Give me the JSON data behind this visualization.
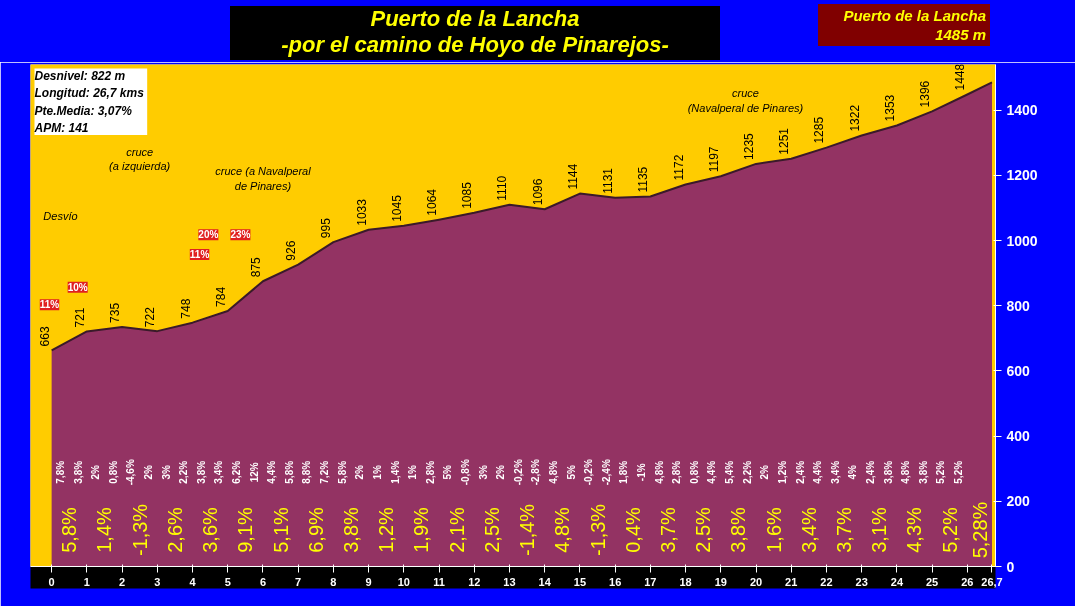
{
  "chart_data": {
    "type": "area",
    "title": "Puerto de la Lancha",
    "subtitle": "-por el camino de Hoyo de Pinarejos-",
    "x": [
      0,
      1,
      2,
      3,
      4,
      5,
      6,
      7,
      8,
      9,
      10,
      11,
      12,
      13,
      14,
      15,
      16,
      17,
      18,
      19,
      20,
      21,
      22,
      23,
      24,
      25,
      26,
      26.7
    ],
    "series": [
      {
        "color": "#933363",
        "values": [
          663,
          721,
          735,
          722,
          748,
          784,
          875,
          926,
          995,
          1033,
          1045,
          1064,
          1085,
          1110,
          1096,
          1144,
          1131,
          1135,
          1172,
          1197,
          1235,
          1251,
          1285,
          1322,
          1353,
          1396,
          1448,
          1485
        ],
        "value_labels": [
          "663",
          "721",
          "735",
          "722",
          "748",
          "784",
          "875",
          "926",
          "995",
          "1033",
          "1045",
          "1064",
          "1085",
          "1110",
          "1096",
          "1144",
          "1131",
          "1135",
          "1172",
          "1197",
          "1235",
          "1251",
          "1285",
          "1322",
          "1353",
          "1396",
          "1448",
          null
        ]
      }
    ],
    "xlim": [
      -0.6,
      26.8
    ],
    "ylim": [
      0,
      1540
    ],
    "xticks": [
      0,
      1,
      2,
      3,
      4,
      5,
      6,
      7,
      8,
      9,
      10,
      11,
      12,
      13,
      14,
      15,
      16,
      17,
      18,
      19,
      20,
      21,
      22,
      23,
      24,
      25,
      26,
      {
        "value": 26.7,
        "label": "26,7"
      }
    ],
    "yticks": [
      0,
      200,
      400,
      600,
      800,
      1000,
      1200,
      1400
    ],
    "grid": false,
    "annotations": [
      "Desnivel:  822 m\nLongitud:  26,7 kms\nPte.Media:  3,07%\nAPM:  141",
      "Puerto de la Lancha\n1485 m",
      "Desvío",
      "cruce\n(a izquierda)",
      "cruce (a Navalperal\nde Pinares)",
      "cruce\n(Navalperal de Pinares)",
      "11%",
      "10%",
      "11%",
      "20%",
      "23%",
      "7,8%",
      "3,8%",
      "2%",
      "0,8%",
      "-4,6%",
      "2%",
      "3%",
      "2,2%",
      "3,8%",
      "3,4%",
      "6,2%",
      "12%",
      "4,4%",
      "5,8%",
      "8,8%",
      "7,2%",
      "5,8%",
      "2%",
      "1%",
      "1,4%",
      "1%",
      "2,8%",
      "5%",
      "-0,8%",
      "3%",
      "2%",
      "-0,2%",
      "-2,8%",
      "4,8%",
      "5%",
      "-0,2%",
      "-2,4%",
      "1,8%",
      "-1%",
      "4,8%",
      "2,8%",
      "0,8%",
      "4,4%",
      "5,4%",
      "2,2%",
      "2%",
      "1,2%",
      "2,4%",
      "4,4%",
      "3,4%",
      "4%",
      "2,4%",
      "3,8%",
      "4,8%",
      "3,8%",
      "5,2%",
      "5,2%",
      "5,8%",
      "1,4%",
      "-1,3%",
      "2,6%",
      "3,6%",
      "9,1%",
      "5,1%",
      "6,9%",
      "3,8%",
      "1,2%",
      "1,9%",
      "2,1%",
      "2,5%",
      "-1,4%",
      "4,8%",
      "-1,3%",
      "0,4%",
      "3,7%",
      "2,5%",
      "3,8%",
      "1,6%",
      "3,4%",
      "3,7%",
      "3,1%",
      "4,3%",
      "5,2%",
      "5,28%"
    ]
  }
}
